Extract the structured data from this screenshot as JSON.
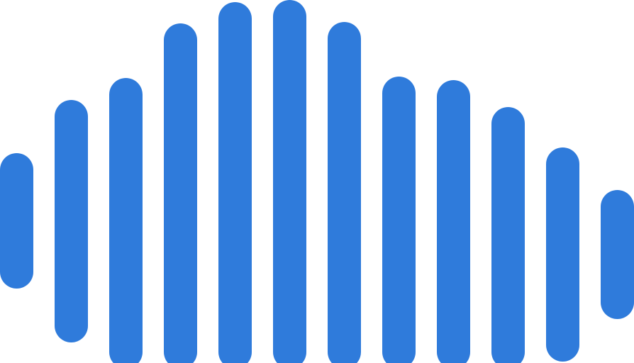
{
  "graphic": {
    "icon": "sound-wave-icon",
    "bar_color": "#2F7BDB"
  }
}
